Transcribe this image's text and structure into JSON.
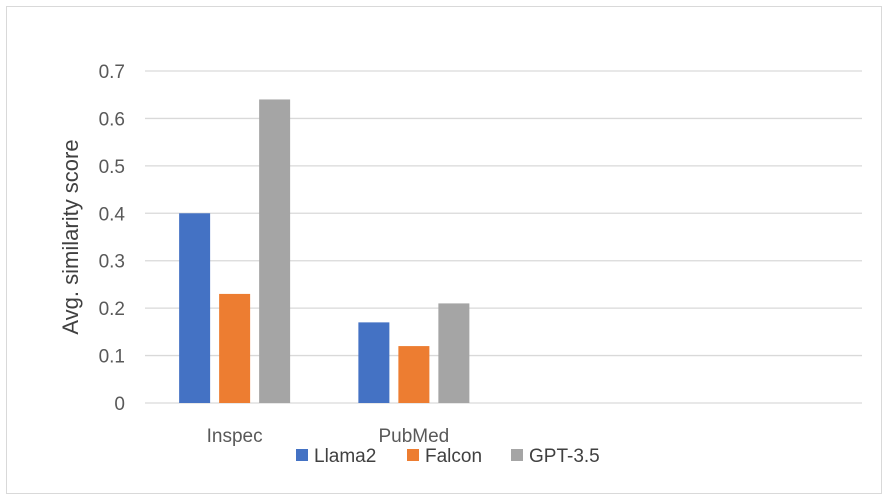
{
  "chart_data": {
    "type": "bar",
    "title": "",
    "xlabel": "",
    "ylabel": "Avg. similarity score",
    "categories": [
      "Inspec",
      "PubMed",
      "",
      ""
    ],
    "series": [
      {
        "name": "Llama2",
        "values": [
          0.4,
          0.17,
          null,
          null
        ],
        "color": "#4472c4"
      },
      {
        "name": "Falcon",
        "values": [
          0.23,
          0.12,
          null,
          null
        ],
        "color": "#ed7d31"
      },
      {
        "name": "GPT-3.5",
        "values": [
          0.64,
          0.21,
          null,
          null
        ],
        "color": "#a5a5a5"
      }
    ],
    "ylim": [
      0,
      0.7
    ],
    "yticks": [
      "0",
      "0.1",
      "0.2",
      "0.3",
      "0.4",
      "0.5",
      "0.6",
      "0.7"
    ],
    "grid": true,
    "legend": "bottom",
    "gridline_color": "#d9d9d9"
  }
}
